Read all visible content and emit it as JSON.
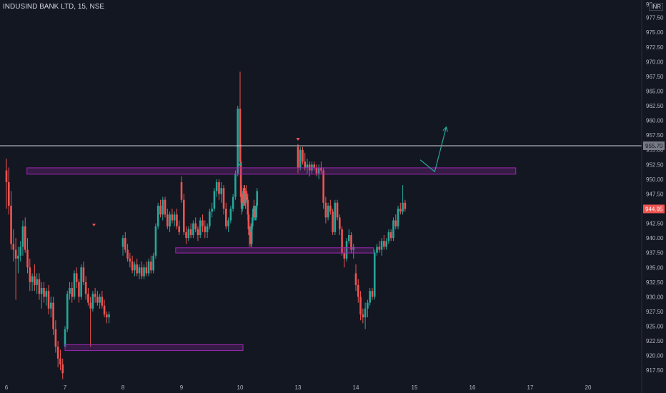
{
  "header": {
    "symbol": "INDUSIND BANK LTD, 15, NSE",
    "currency": "INR"
  },
  "colors": {
    "background": "#131722",
    "up": "#26a69a",
    "down": "#ef5350",
    "zone": "#9c27b0",
    "resistance_line": "#d1d4dc",
    "projection": "#26a69a",
    "axis_text": "#b2b5be"
  },
  "chart_data": {
    "type": "candlestick",
    "title": "INDUSIND BANK LTD, 15, NSE",
    "currency": "INR",
    "ylim": [
      915.7,
      980.5
    ],
    "y_ticks": [
      "977.50",
      "975.00",
      "972.50",
      "970.00",
      "967.50",
      "965.00",
      "962.50",
      "960.00",
      "957.50",
      "955.00",
      "952.50",
      "950.00",
      "947.50",
      "945.00",
      "942.50",
      "940.00",
      "937.50",
      "935.00",
      "932.50",
      "930.00",
      "927.50",
      "925.00",
      "922.50",
      "920.00",
      "917.50"
    ],
    "y_top_partial": "98",
    "x_ticks": [
      "6",
      "7",
      "8",
      "9",
      "10",
      "13",
      "14",
      "15",
      "16",
      "17",
      "20"
    ],
    "last_price": "944.95",
    "resistance_price": "955.70",
    "grid": false,
    "zones": [
      {
        "from_day": 6.35,
        "to_day": 16.75,
        "low": 951.1,
        "high": 951.7
      },
      {
        "from_day": 8.9,
        "to_day": 14.3,
        "low": 937.7,
        "high": 938.1
      },
      {
        "from_day": 7.0,
        "to_day": 10.15,
        "low": 921.1,
        "high": 921.6
      }
    ],
    "projection": [
      {
        "day": 15.1,
        "price": 953.3
      },
      {
        "day": 15.35,
        "price": 951.3
      },
      {
        "day": 15.55,
        "price": 958.9
      }
    ],
    "markers": [
      {
        "day": 7.5,
        "price": 942.2,
        "direction": "down"
      },
      {
        "day": 10.0,
        "price": 952.6,
        "direction": "up"
      },
      {
        "day": 13.0,
        "price": 956.8,
        "direction": "down"
      }
    ],
    "candles": [
      [
        6.0,
        951.5,
        953.5,
        945.0,
        949.5
      ],
      [
        6.04,
        949.5,
        952.0,
        944.0,
        945.5
      ],
      [
        6.08,
        945.5,
        948.0,
        938.0,
        939.0
      ],
      [
        6.12,
        939.0,
        941.5,
        936.0,
        938.0
      ],
      [
        6.16,
        938.0,
        940.0,
        929.5,
        936.5
      ],
      [
        6.2,
        936.5,
        938.5,
        934.0,
        937.0
      ],
      [
        6.24,
        937.0,
        939.5,
        936.0,
        938.5
      ],
      [
        6.28,
        938.5,
        943.0,
        937.0,
        942.0
      ],
      [
        6.32,
        942.0,
        943.5,
        937.5,
        938.0
      ],
      [
        6.36,
        938.0,
        940.0,
        934.0,
        935.0
      ],
      [
        6.4,
        935.0,
        936.5,
        931.0,
        932.5
      ],
      [
        6.44,
        932.5,
        934.0,
        931.0,
        933.5
      ],
      [
        6.48,
        933.5,
        935.5,
        931.0,
        932.0
      ],
      [
        6.52,
        932.0,
        934.0,
        930.5,
        933.0
      ],
      [
        6.56,
        933.0,
        934.0,
        929.5,
        930.5
      ],
      [
        6.6,
        930.5,
        932.5,
        928.0,
        931.5
      ],
      [
        6.64,
        931.5,
        932.5,
        929.0,
        930.0
      ],
      [
        6.68,
        930.0,
        931.5,
        928.5,
        931.0
      ],
      [
        6.72,
        931.0,
        932.0,
        927.0,
        928.0
      ],
      [
        6.76,
        928.0,
        930.0,
        926.5,
        929.0
      ],
      [
        6.8,
        929.0,
        930.0,
        923.5,
        924.5
      ],
      [
        6.84,
        924.5,
        926.0,
        920.5,
        921.5
      ],
      [
        6.88,
        921.5,
        922.5,
        918.0,
        919.5
      ],
      [
        6.92,
        919.5,
        921.0,
        917.5,
        918.5
      ],
      [
        6.96,
        918.5,
        919.5,
        916.0,
        917.0
      ],
      [
        7.0,
        921.5,
        925.0,
        921.0,
        924.5
      ],
      [
        7.04,
        924.5,
        931.0,
        924.0,
        930.5
      ],
      [
        7.08,
        930.5,
        932.5,
        929.5,
        931.5
      ],
      [
        7.12,
        931.5,
        932.5,
        929.0,
        930.0
      ],
      [
        7.16,
        930.0,
        934.5,
        929.5,
        934.0
      ],
      [
        7.2,
        934.0,
        935.0,
        931.5,
        932.5
      ],
      [
        7.24,
        932.5,
        933.0,
        929.0,
        930.0
      ],
      [
        7.28,
        930.0,
        935.5,
        929.5,
        935.0
      ],
      [
        7.32,
        935.0,
        936.0,
        932.0,
        932.5
      ],
      [
        7.36,
        932.5,
        933.5,
        929.5,
        930.5
      ],
      [
        7.4,
        930.5,
        931.5,
        928.5,
        929.0
      ],
      [
        7.44,
        929.0,
        930.0,
        921.5,
        928.0
      ],
      [
        7.48,
        928.0,
        931.0,
        927.5,
        930.5
      ],
      [
        7.52,
        930.5,
        931.5,
        929.0,
        930.0
      ],
      [
        7.56,
        930.0,
        931.0,
        928.5,
        929.0
      ],
      [
        7.6,
        929.0,
        930.5,
        928.0,
        930.0
      ],
      [
        7.64,
        930.0,
        931.0,
        928.0,
        928.5
      ],
      [
        7.68,
        928.5,
        929.5,
        926.5,
        927.0
      ],
      [
        7.72,
        927.0,
        927.5,
        925.5,
        926.5
      ],
      [
        7.76,
        926.5,
        927.5,
        925.5,
        927.0
      ],
      [
        8.0,
        938.5,
        940.5,
        937.0,
        940.0
      ],
      [
        8.04,
        940.0,
        941.0,
        937.5,
        938.0
      ],
      [
        8.08,
        938.0,
        939.0,
        936.0,
        936.5
      ],
      [
        8.12,
        936.5,
        937.5,
        935.0,
        936.0
      ],
      [
        8.16,
        936.0,
        937.0,
        934.0,
        934.5
      ],
      [
        8.2,
        934.5,
        936.0,
        933.5,
        935.5
      ],
      [
        8.24,
        935.5,
        936.5,
        933.5,
        934.0
      ],
      [
        8.28,
        934.0,
        935.5,
        933.0,
        935.0
      ],
      [
        8.32,
        935.0,
        936.0,
        933.0,
        933.5
      ],
      [
        8.36,
        933.5,
        935.5,
        933.0,
        935.0
      ],
      [
        8.4,
        935.0,
        936.0,
        933.5,
        934.0
      ],
      [
        8.44,
        934.0,
        936.5,
        933.5,
        936.0
      ],
      [
        8.48,
        936.0,
        937.0,
        934.0,
        934.5
      ],
      [
        8.52,
        934.5,
        937.5,
        934.0,
        937.0
      ],
      [
        8.56,
        937.0,
        942.5,
        936.5,
        942.0
      ],
      [
        8.6,
        942.0,
        946.0,
        941.5,
        945.5
      ],
      [
        8.64,
        945.5,
        946.5,
        943.5,
        944.0
      ],
      [
        8.68,
        944.0,
        947.0,
        943.0,
        946.5
      ],
      [
        8.72,
        946.5,
        947.0,
        943.5,
        944.0
      ],
      [
        8.76,
        944.0,
        945.0,
        941.5,
        942.0
      ],
      [
        8.8,
        942.0,
        944.5,
        941.0,
        944.0
      ],
      [
        8.84,
        944.0,
        945.0,
        942.5,
        943.0
      ],
      [
        8.88,
        943.0,
        944.5,
        942.0,
        944.0
      ],
      [
        8.92,
        944.0,
        945.0,
        941.5,
        942.0
      ],
      [
        8.96,
        942.0,
        943.0,
        940.5,
        941.0
      ],
      [
        9.0,
        949.5,
        950.5,
        946.0,
        946.5
      ],
      [
        9.04,
        946.5,
        947.5,
        940.5,
        941.0
      ],
      [
        9.08,
        941.0,
        942.0,
        939.0,
        940.0
      ],
      [
        9.12,
        940.0,
        942.0,
        939.5,
        941.5
      ],
      [
        9.16,
        941.5,
        942.5,
        940.0,
        940.5
      ],
      [
        9.2,
        940.5,
        943.0,
        940.0,
        942.5
      ],
      [
        9.24,
        942.5,
        943.5,
        941.0,
        941.5
      ],
      [
        9.28,
        941.5,
        942.0,
        939.5,
        940.5
      ],
      [
        9.32,
        940.5,
        943.5,
        940.0,
        943.0
      ],
      [
        9.36,
        943.0,
        944.0,
        941.0,
        942.0
      ],
      [
        9.4,
        942.0,
        943.0,
        940.0,
        941.0
      ],
      [
        9.44,
        941.0,
        942.5,
        940.0,
        942.0
      ],
      [
        9.48,
        942.0,
        945.0,
        941.5,
        944.5
      ],
      [
        9.52,
        944.5,
        946.0,
        943.5,
        945.0
      ],
      [
        9.56,
        945.0,
        948.5,
        944.5,
        948.0
      ],
      [
        9.6,
        948.0,
        950.0,
        947.0,
        949.5
      ],
      [
        9.64,
        949.5,
        950.0,
        946.5,
        947.5
      ],
      [
        9.68,
        947.5,
        949.5,
        946.0,
        948.5
      ],
      [
        9.72,
        948.5,
        949.0,
        944.0,
        945.0
      ],
      [
        9.76,
        945.0,
        946.0,
        941.5,
        942.0
      ],
      [
        9.8,
        942.0,
        943.5,
        941.0,
        943.0
      ],
      [
        9.84,
        943.0,
        945.5,
        942.5,
        945.0
      ],
      [
        9.88,
        945.0,
        947.5,
        944.5,
        947.0
      ],
      [
        9.92,
        947.0,
        951.5,
        946.5,
        951.0
      ],
      [
        9.96,
        951.0,
        962.5,
        950.5,
        962.0
      ],
      [
        10.0,
        962.0,
        968.3,
        952.0,
        953.0
      ],
      [
        10.04,
        953.0,
        956.0,
        946.0,
        947.0
      ],
      [
        10.08,
        947.0,
        949.0,
        944.0,
        945.0
      ],
      [
        10.12,
        945.0,
        948.0,
        944.5,
        947.5
      ],
      [
        10.16,
        947.5,
        948.5,
        945.5,
        946.0
      ],
      [
        10.2,
        946.0,
        949.0,
        945.5,
        948.5
      ],
      [
        10.24,
        948.5,
        949.0,
        945.5,
        946.0
      ],
      [
        10.28,
        946.0,
        948.0,
        945.0,
        947.5
      ],
      [
        10.32,
        947.5,
        949.0,
        946.5,
        947.0
      ],
      [
        10.36,
        947.0,
        948.0,
        945.5,
        946.5
      ],
      [
        10.4,
        946.5,
        947.5,
        943.0,
        944.0
      ],
      [
        10.44,
        944.0,
        944.5,
        940.5,
        941.5
      ],
      [
        10.48,
        941.5,
        942.0,
        938.5,
        940.5
      ],
      [
        10.52,
        940.5,
        942.0,
        939.0,
        941.0
      ],
      [
        10.56,
        941.0,
        942.5,
        938.5,
        939.0
      ],
      [
        10.6,
        939.0,
        942.5,
        938.5,
        942.0
      ],
      [
        10.64,
        942.0,
        944.0,
        941.5,
        943.5
      ],
      [
        10.68,
        943.5,
        945.5,
        943.0,
        945.0
      ],
      [
        10.72,
        945.0,
        946.5,
        943.5,
        944.5
      ],
      [
        10.76,
        944.5,
        945.5,
        943.0,
        945.0
      ],
      [
        10.8,
        945.0,
        945.5,
        943.0,
        943.5
      ],
      [
        10.84,
        943.5,
        946.0,
        943.0,
        945.5
      ],
      [
        10.88,
        945.5,
        948.5,
        945.0,
        948.0
      ],
      [
        13.0,
        955.5,
        956.0,
        951.0,
        952.0
      ],
      [
        13.04,
        952.0,
        955.5,
        951.5,
        955.0
      ],
      [
        13.08,
        955.0,
        955.5,
        952.5,
        953.0
      ],
      [
        13.12,
        953.0,
        954.5,
        951.5,
        952.0
      ],
      [
        13.16,
        952.0,
        953.5,
        951.0,
        952.5
      ],
      [
        13.2,
        952.5,
        953.0,
        950.5,
        951.5
      ],
      [
        13.24,
        951.5,
        953.0,
        951.0,
        952.5
      ],
      [
        13.28,
        952.5,
        953.0,
        951.5,
        952.0
      ],
      [
        13.32,
        952.0,
        952.5,
        950.5,
        951.0
      ],
      [
        13.36,
        951.0,
        952.5,
        950.0,
        952.0
      ],
      [
        13.4,
        952.0,
        953.0,
        951.0,
        951.5
      ],
      [
        13.44,
        951.5,
        952.0,
        945.0,
        946.0
      ],
      [
        13.48,
        946.0,
        947.0,
        942.5,
        943.5
      ],
      [
        13.52,
        943.5,
        946.0,
        943.0,
        945.5
      ],
      [
        13.56,
        945.5,
        946.5,
        944.0,
        944.5
      ],
      [
        13.6,
        944.5,
        945.0,
        940.5,
        941.0
      ],
      [
        13.64,
        941.0,
        946.5,
        940.5,
        946.0
      ],
      [
        13.68,
        946.0,
        946.5,
        943.0,
        943.5
      ],
      [
        13.72,
        943.5,
        944.0,
        940.5,
        941.5
      ],
      [
        13.76,
        941.5,
        942.0,
        937.0,
        937.5
      ],
      [
        13.8,
        937.5,
        938.5,
        935.0,
        936.5
      ],
      [
        13.84,
        936.5,
        940.0,
        936.0,
        939.5
      ],
      [
        13.88,
        939.5,
        941.5,
        939.0,
        940.5
      ],
      [
        13.92,
        940.5,
        941.0,
        937.5,
        938.0
      ],
      [
        13.96,
        938.0,
        939.0,
        936.5,
        938.5
      ],
      [
        14.0,
        934.0,
        935.5,
        931.0,
        932.0
      ],
      [
        14.04,
        932.0,
        933.0,
        929.0,
        930.0
      ],
      [
        14.08,
        930.0,
        931.0,
        926.0,
        927.0
      ],
      [
        14.12,
        927.0,
        928.0,
        925.5,
        926.5
      ],
      [
        14.16,
        926.5,
        929.0,
        924.5,
        928.0
      ],
      [
        14.2,
        928.0,
        929.5,
        926.5,
        929.0
      ],
      [
        14.24,
        929.0,
        931.5,
        928.5,
        931.0
      ],
      [
        14.28,
        931.0,
        931.5,
        929.5,
        930.0
      ],
      [
        14.32,
        930.0,
        938.0,
        929.5,
        937.5
      ],
      [
        14.36,
        937.5,
        939.0,
        937.0,
        938.5
      ],
      [
        14.4,
        938.5,
        939.5,
        937.5,
        938.0
      ],
      [
        14.44,
        938.0,
        940.0,
        937.0,
        939.5
      ],
      [
        14.48,
        939.5,
        940.5,
        938.0,
        938.5
      ],
      [
        14.52,
        938.5,
        940.0,
        938.0,
        939.5
      ],
      [
        14.56,
        939.5,
        941.5,
        939.0,
        941.0
      ],
      [
        14.6,
        941.0,
        941.5,
        939.5,
        940.0
      ],
      [
        14.64,
        940.0,
        943.5,
        939.5,
        943.0
      ],
      [
        14.68,
        943.0,
        944.0,
        941.5,
        942.0
      ],
      [
        14.72,
        942.0,
        945.5,
        941.5,
        945.0
      ],
      [
        14.76,
        945.0,
        946.0,
        944.0,
        944.5
      ],
      [
        14.8,
        944.5,
        949.0,
        944.0,
        946.0
      ],
      [
        14.84,
        946.0,
        946.5,
        944.5,
        944.95
      ]
    ]
  }
}
